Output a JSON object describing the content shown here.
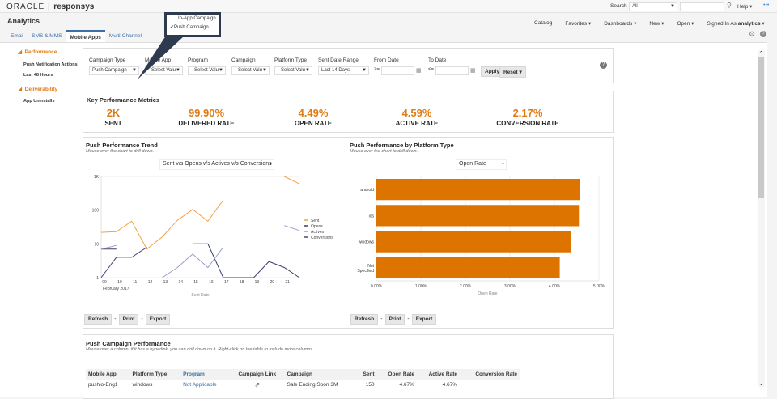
{
  "brand": {
    "oracle": "ORACLE",
    "product": "responsys"
  },
  "top": {
    "search_label": "Search",
    "search_scope": "All",
    "help": "Help"
  },
  "app_title": "Analytics",
  "nav": {
    "catalog": "Catalog",
    "favorites": "Favorites",
    "dashboards": "Dashboards",
    "new": "New",
    "open": "Open",
    "signed_in_as": "Signed In As",
    "user": "analytics"
  },
  "tabs": [
    {
      "label": "Email"
    },
    {
      "label": "SMS & MMS"
    },
    {
      "label": "Mobile Apps",
      "active": true
    },
    {
      "label": "Multi-Channel"
    }
  ],
  "popup": {
    "items": [
      "In-App Campaign",
      "Push Campaign"
    ],
    "checked": "Push Campaign"
  },
  "sidebar": {
    "sections": [
      {
        "title": "Performance",
        "items": [
          "Push Notification Actions",
          "Last 48 Hours"
        ]
      },
      {
        "title": "Deliverability",
        "items": [
          "App Uninstalls"
        ]
      }
    ]
  },
  "filters": {
    "campaign_type": {
      "label": "Campaign Type",
      "value": "Push Campaign"
    },
    "mobile_app": {
      "label": "Mobile App",
      "value": "--Select Valu"
    },
    "program": {
      "label": "Program",
      "value": "--Select Valu"
    },
    "campaign": {
      "label": "Campaign",
      "value": "--Select Valu"
    },
    "platform_type": {
      "label": "Platform Type",
      "value": "--Select Valu"
    },
    "sent_date_range": {
      "label": "Sent Date Range",
      "value": "Last 14 Days"
    },
    "from_date": {
      "label": "From Date",
      "op": ">=",
      "value": ""
    },
    "to_date": {
      "label": "To Date",
      "op": "<=",
      "value": ""
    },
    "apply": "Apply",
    "reset": "Reset"
  },
  "kpi": {
    "title": "Key Performance Metrics",
    "items": [
      {
        "value": "2K",
        "label": "SENT"
      },
      {
        "value": "99.90%",
        "label": "DELIVERED RATE"
      },
      {
        "value": "4.49%",
        "label": "OPEN RATE"
      },
      {
        "value": "4.59%",
        "label": "ACTIVE RATE"
      },
      {
        "value": "2.17%",
        "label": "CONVERSION RATE"
      }
    ]
  },
  "trend": {
    "title": "Push Performance Trend",
    "subtitle": "Mouse over the chart to drill down.",
    "selector": "Sent v/s Opens v/s Actives v/s Conversions"
  },
  "platform": {
    "title": "Push Performance by Platform Type",
    "subtitle": "Mouse over the chart to drill down.",
    "selector": "Open Rate"
  },
  "actions": {
    "refresh": "Refresh",
    "print": "Print",
    "export": "Export",
    "sep": "-"
  },
  "chart_data": [
    {
      "type": "line",
      "xlabel": "Sent Date",
      "x_tick_labels": [
        "09",
        "10",
        "11",
        "12",
        "13",
        "14",
        "15",
        "16",
        "17",
        "18",
        "19",
        "20",
        "21"
      ],
      "x_sublabel": "February 2017",
      "y_scale": "log",
      "ylim": [
        1,
        1000
      ],
      "y_tick_labels": [
        "1",
        "10",
        "100",
        "1K"
      ],
      "grid": true,
      "legend": "right",
      "x": [
        9,
        10,
        11,
        12,
        13,
        14,
        15,
        16,
        17,
        18,
        19,
        20,
        21,
        22
      ],
      "series": [
        {
          "name": "Sent",
          "color": "#f0a14a",
          "values": [
            22,
            23,
            47,
            7,
            16,
            50,
            105,
            47,
            200,
            null,
            null,
            null,
            1000,
            600
          ]
        },
        {
          "name": "Opens",
          "color": "#3b3f6b",
          "values": [
            7,
            7,
            null,
            null,
            null,
            null,
            10,
            10,
            1,
            1,
            1,
            3,
            2,
            1
          ]
        },
        {
          "name": "Actives",
          "color": "#9a9cc9",
          "values": [
            7,
            9,
            null,
            null,
            1,
            2,
            5,
            2,
            8,
            null,
            null,
            null,
            35,
            25
          ]
        },
        {
          "name": "Conversions",
          "color": "#4a4870",
          "values": [
            1,
            4,
            4,
            8,
            null,
            null,
            null,
            null,
            null,
            null,
            null,
            null,
            null,
            null
          ]
        }
      ]
    },
    {
      "type": "bar",
      "orientation": "horizontal",
      "categories": [
        "android",
        "ios",
        "windows",
        "Not Specified"
      ],
      "values": [
        4.57,
        4.55,
        4.38,
        4.12
      ],
      "xlabel": "Open Rate",
      "xlim": [
        0,
        5
      ],
      "x_tick_labels": [
        "0.00%",
        "1.00%",
        "2.00%",
        "3.00%",
        "4.00%",
        "5.00%"
      ],
      "color": "#dd7400",
      "grid": true
    }
  ],
  "table": {
    "title": "Push Campaign Performance",
    "subtitle": "Mouse over a column, if it has a hyperlink, you can drill down on it. Right-click on the table to include more columns.",
    "columns": [
      "Mobile App",
      "Platform Type",
      "Program",
      "Campaign Link",
      "Campaign",
      "Sent",
      "Open Rate",
      "Active Rate",
      "Conversion Rate"
    ],
    "rows": [
      [
        "pushio-Eng1",
        "windows",
        "Not Applicable",
        "",
        "Sale Ending Soon 3M",
        "150",
        "4.67%",
        "4.67%",
        ""
      ]
    ]
  }
}
